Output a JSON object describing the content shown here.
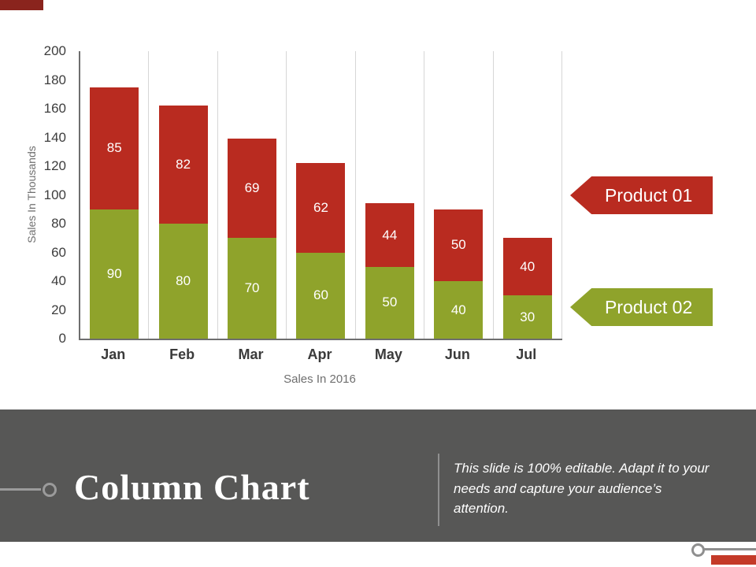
{
  "slide": {
    "title": "Column Chart",
    "description": "This slide is 100% editable. Adapt it to your needs and capture your audience’s attention."
  },
  "chart_data": {
    "type": "bar",
    "stacked": true,
    "categories": [
      "Jan",
      "Feb",
      "Mar",
      "Apr",
      "May",
      "Jun",
      "Jul"
    ],
    "series": [
      {
        "name": "Product 02",
        "color": "#8fa32b",
        "values": [
          90,
          80,
          70,
          60,
          50,
          40,
          30
        ]
      },
      {
        "name": "Product 01",
        "color": "#b92b20",
        "values": [
          85,
          82,
          69,
          62,
          44,
          50,
          40
        ]
      }
    ],
    "title": "",
    "xlabel": "Sales In 2016",
    "ylabel": "Sales In Thousands",
    "ylim": [
      0,
      200
    ],
    "ytick_step": 20,
    "grid": "vertical",
    "legend_position": "right"
  },
  "legend": {
    "items": [
      {
        "label": "Product 01",
        "color": "#b92b20"
      },
      {
        "label": "Product 02",
        "color": "#8fa32b"
      }
    ]
  },
  "colors": {
    "top_strip": "#8a241d",
    "bottom_strip": "#c43a28",
    "footer_background": "#575756"
  }
}
